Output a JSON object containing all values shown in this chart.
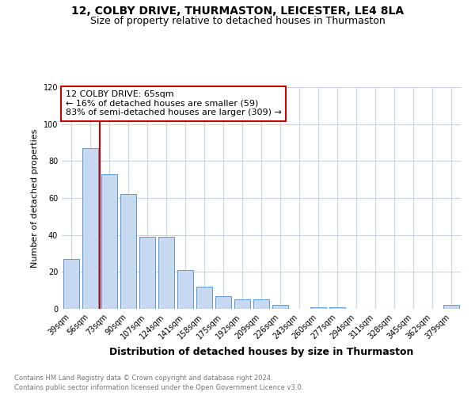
{
  "title": "12, COLBY DRIVE, THURMASTON, LEICESTER, LE4 8LA",
  "subtitle": "Size of property relative to detached houses in Thurmaston",
  "xlabel": "Distribution of detached houses by size in Thurmaston",
  "ylabel": "Number of detached properties",
  "categories": [
    "39sqm",
    "56sqm",
    "73sqm",
    "90sqm",
    "107sqm",
    "124sqm",
    "141sqm",
    "158sqm",
    "175sqm",
    "192sqm",
    "209sqm",
    "226sqm",
    "243sqm",
    "260sqm",
    "277sqm",
    "294sqm",
    "311sqm",
    "328sqm",
    "345sqm",
    "362sqm",
    "379sqm"
  ],
  "values": [
    27,
    87,
    73,
    62,
    39,
    39,
    21,
    12,
    7,
    5,
    5,
    2,
    0,
    1,
    1,
    0,
    0,
    0,
    0,
    0,
    2
  ],
  "bar_color": "#c6d9f0",
  "bar_edge_color": "#5b9bd5",
  "annotation_title": "12 COLBY DRIVE: 65sqm",
  "annotation_line1": "← 16% of detached houses are smaller (59)",
  "annotation_line2": "83% of semi-detached houses are larger (309) →",
  "annotation_box_color": "#ffffff",
  "annotation_box_edge": "#cc0000",
  "red_line_color": "#cc0000",
  "ylim": [
    0,
    120
  ],
  "yticks": [
    0,
    20,
    40,
    60,
    80,
    100,
    120
  ],
  "footer_line1": "Contains HM Land Registry data © Crown copyright and database right 2024.",
  "footer_line2": "Contains public sector information licensed under the Open Government Licence v3.0.",
  "title_fontsize": 10,
  "subtitle_fontsize": 9,
  "ylabel_fontsize": 8,
  "xlabel_fontsize": 9,
  "tick_fontsize": 7,
  "annotation_fontsize": 8,
  "footer_fontsize": 6,
  "background_color": "#ffffff",
  "grid_color": "#c8d4e8"
}
